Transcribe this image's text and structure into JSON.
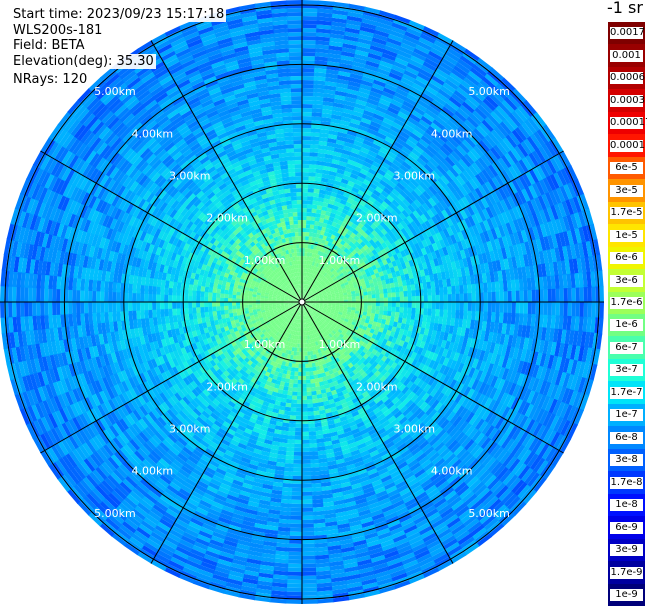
{
  "header": {
    "start_time": "Start time: 2023/09/23 15:17:18",
    "instrument": "WLS200s-181",
    "field": "Field: BETA",
    "elevation": "Elevation(deg): 35.30",
    "nrays": "NRays: 120"
  },
  "colorbar": {
    "unit": "-1 sr",
    "labels": [
      "0.0017",
      "0.001",
      "0.0006",
      "0.0003",
      "0.00017",
      "0.0001",
      "6e-5",
      "3e-5",
      "1.7e-5",
      "1e-5",
      "6e-6",
      "3e-6",
      "1.7e-6",
      "1e-6",
      "6e-7",
      "3e-7",
      "1.7e-7",
      "1e-7",
      "6e-8",
      "3e-8",
      "1.7e-8",
      "1e-8",
      "6e-9",
      "3e-9",
      "1.7e-9",
      "1e-9"
    ],
    "colors": [
      "#7f0000",
      "#990000",
      "#b20000",
      "#d40000",
      "#ee0000",
      "#ff1600",
      "#ff5a00",
      "#ff9400",
      "#ffc300",
      "#ffe500",
      "#f0f500",
      "#c3ff34",
      "#9cff5a",
      "#72ff83",
      "#49ffad",
      "#1fffd7",
      "#00e4f8",
      "#00b0ff",
      "#0088ff",
      "#0060ff",
      "#0038ff",
      "#0010ff",
      "#0000e8",
      "#0000c4",
      "#00009f",
      "#00007a"
    ]
  },
  "chart_data": {
    "type": "heatmap",
    "projection": "polar (PPI scan)",
    "field": "BETA",
    "unit": "-1 sr",
    "elevation_deg": 35.3,
    "nrays": 120,
    "range_ring_labels": [
      "1.00km",
      "2.00km",
      "3.00km",
      "4.00km",
      "5.00km"
    ],
    "range_rings_km": [
      1,
      2,
      3,
      4,
      5
    ],
    "spokes_every_deg": 30,
    "description_values": {
      "near_center": "1e-6 to 3e-7",
      "mid_range": "1e-7 to 6e-8",
      "outer_range": "3e-8 to 1e-8"
    }
  }
}
